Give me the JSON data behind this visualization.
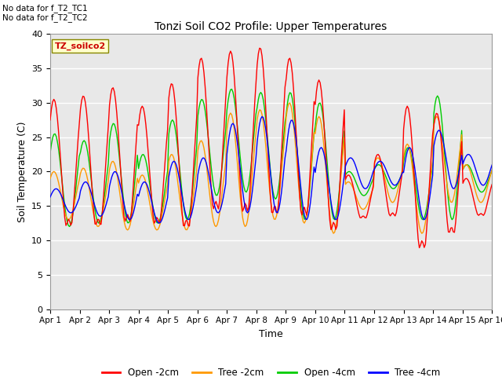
{
  "title": "Tonzi Soil CO2 Profile: Upper Temperatures",
  "xlabel": "Time",
  "ylabel": "Soil Temperature (C)",
  "top_left_text": "No data for f_T2_TC1\nNo data for f_T2_TC2",
  "box_label": "TZ_soilco2",
  "ylim": [
    0,
    40
  ],
  "yticks": [
    0,
    5,
    10,
    15,
    20,
    25,
    30,
    35,
    40
  ],
  "xtick_labels": [
    "Apr 1",
    "Apr 2",
    "Apr 3",
    "Apr 4",
    "Apr 5",
    "Apr 6",
    "Apr 7",
    "Apr 8",
    "Apr 9",
    "Apr 10",
    "Apr 11",
    "Apr 12",
    "Apr 13",
    "Apr 14",
    "Apr 15",
    "Apr 16"
  ],
  "legend_labels": [
    "Open -2cm",
    "Tree -2cm",
    "Open -4cm",
    "Tree -4cm"
  ],
  "legend_colors": [
    "#ff0000",
    "#ff9900",
    "#00cc00",
    "#0000ff"
  ],
  "background_color": "#e8e8e8",
  "num_days": 15,
  "points_per_day": 24
}
